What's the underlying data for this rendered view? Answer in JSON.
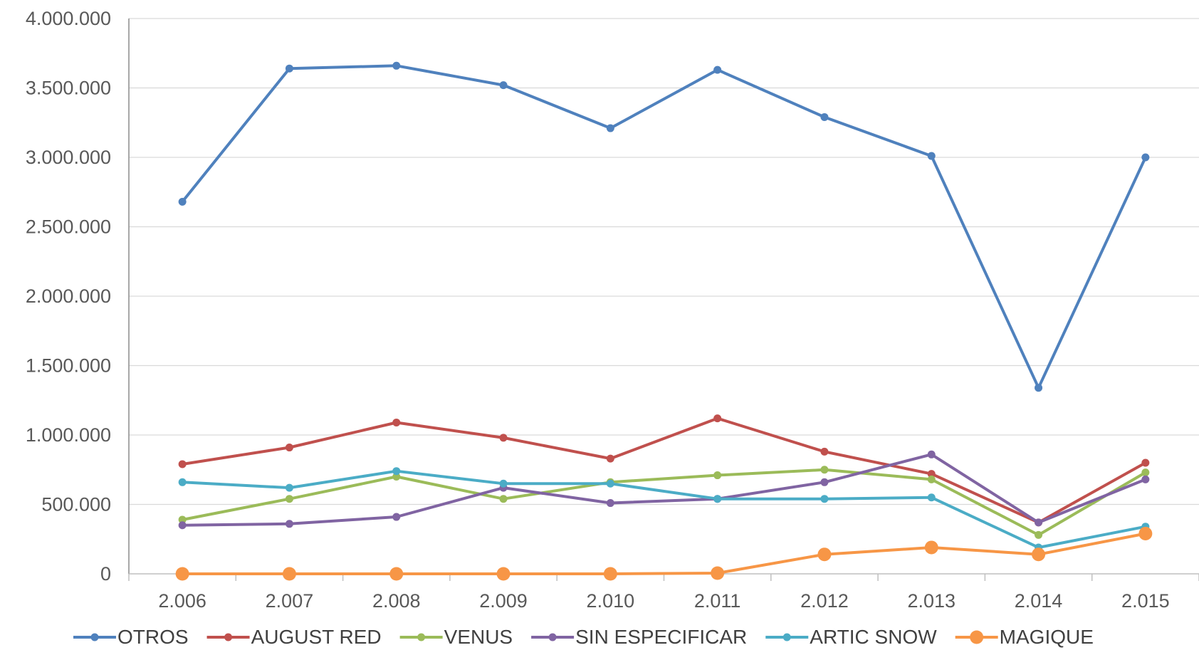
{
  "chart_data": {
    "type": "line",
    "title": "",
    "xlabel": "",
    "ylabel": "",
    "categories": [
      "2.006",
      "2.007",
      "2.008",
      "2.009",
      "2.010",
      "2.011",
      "2.012",
      "2.013",
      "2.014",
      "2.015"
    ],
    "ylim": [
      0,
      4000000
    ],
    "y_ticks": [
      {
        "value": 0,
        "label": "0"
      },
      {
        "value": 500000,
        "label": "500.000"
      },
      {
        "value": 1000000,
        "label": "1.000.000"
      },
      {
        "value": 1500000,
        "label": "1.500.000"
      },
      {
        "value": 2000000,
        "label": "2.000.000"
      },
      {
        "value": 2500000,
        "label": "2.500.000"
      },
      {
        "value": 3000000,
        "label": "3.000.000"
      },
      {
        "value": 3500000,
        "label": "3.500.000"
      },
      {
        "value": 4000000,
        "label": "4.000.000"
      }
    ],
    "grid": true,
    "legend_position": "bottom",
    "series": [
      {
        "name": "OTROS",
        "color": "#4F81BD",
        "marker": "small",
        "values": [
          2680000,
          3640000,
          3660000,
          3520000,
          3210000,
          3630000,
          3290000,
          3010000,
          1340000,
          3000000
        ]
      },
      {
        "name": "AUGUST RED",
        "color": "#C0504D",
        "marker": "small",
        "values": [
          790000,
          910000,
          1090000,
          980000,
          830000,
          1120000,
          880000,
          720000,
          370000,
          800000
        ]
      },
      {
        "name": "VENUS",
        "color": "#9BBB59",
        "marker": "small",
        "values": [
          390000,
          540000,
          700000,
          540000,
          660000,
          710000,
          750000,
          680000,
          280000,
          730000
        ]
      },
      {
        "name": "SIN ESPECIFICAR",
        "color": "#8064A2",
        "marker": "small",
        "values": [
          350000,
          360000,
          410000,
          620000,
          510000,
          540000,
          660000,
          860000,
          370000,
          680000
        ]
      },
      {
        "name": "ARTIC SNOW",
        "color": "#4BACC6",
        "marker": "small",
        "values": [
          660000,
          620000,
          740000,
          650000,
          650000,
          540000,
          540000,
          550000,
          190000,
          340000
        ]
      },
      {
        "name": "MAGIQUE",
        "color": "#F79646",
        "marker": "large",
        "values": [
          0,
          0,
          0,
          0,
          0,
          5000,
          140000,
          190000,
          140000,
          290000
        ]
      }
    ]
  }
}
